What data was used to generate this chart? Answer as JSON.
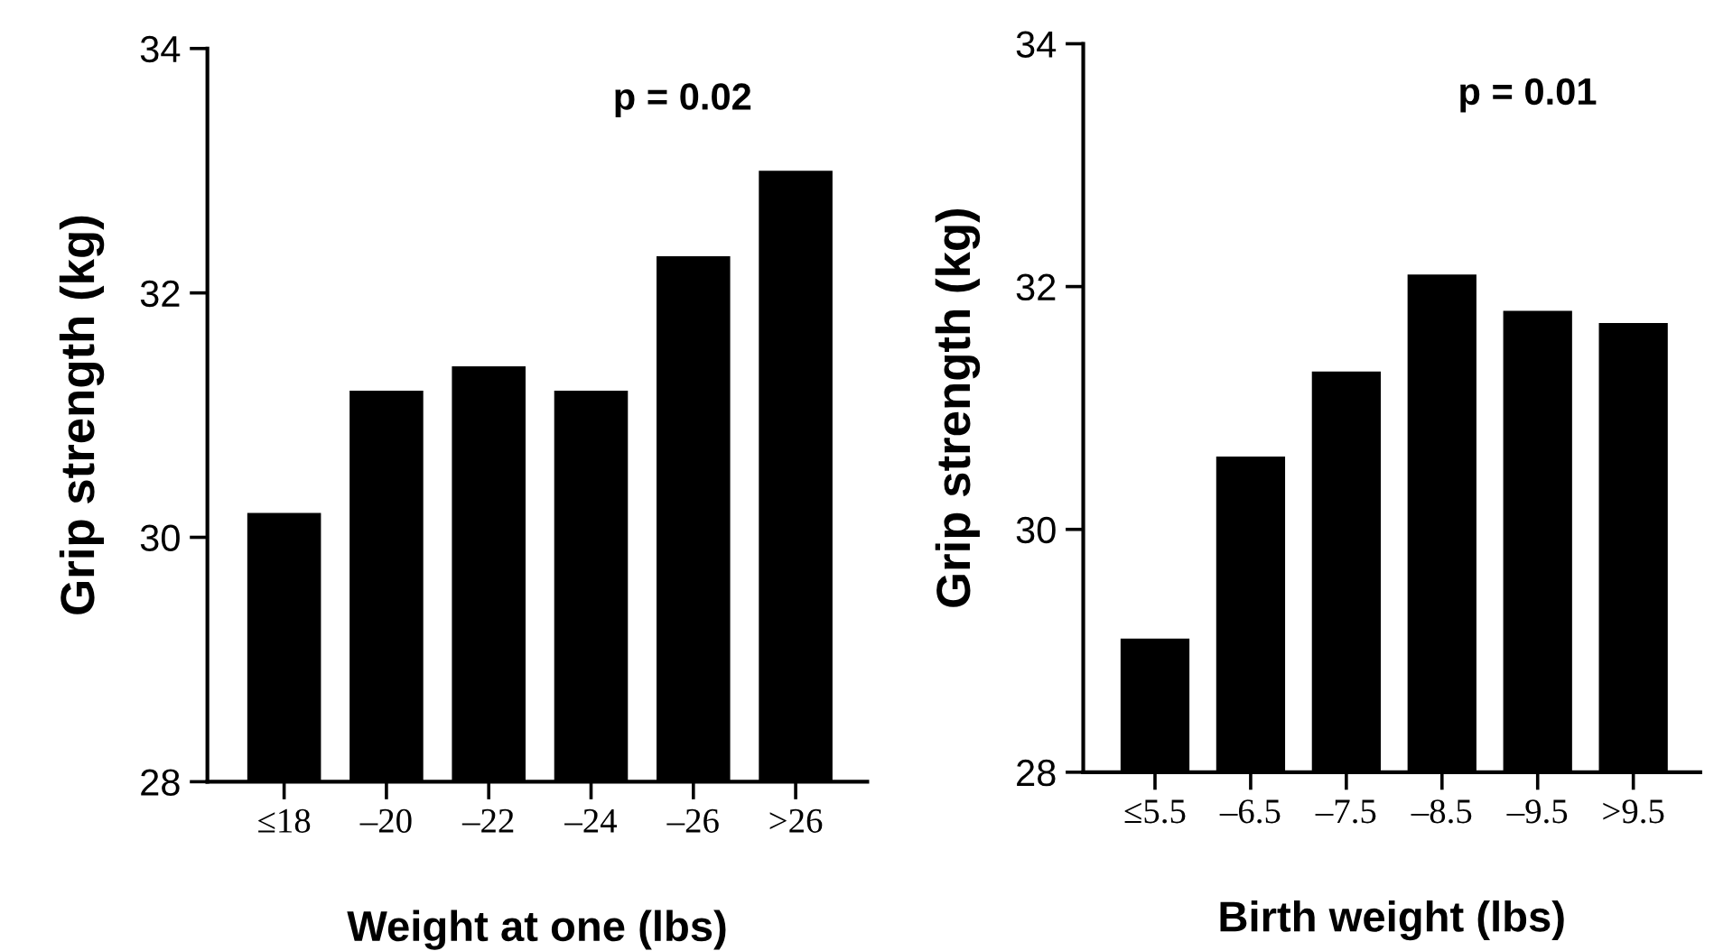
{
  "chart_data": [
    {
      "type": "bar",
      "xlabel": "Weight at one (lbs)",
      "ylabel": "Grip strength (kg)",
      "categories": [
        "≤18",
        "–20",
        "–22",
        "–24",
        "–26",
        ">26"
      ],
      "values": [
        30.2,
        31.2,
        31.4,
        31.2,
        32.3,
        33.0
      ],
      "color": "#000000",
      "ylim": [
        28,
        34
      ],
      "yticks": [
        28,
        30,
        32,
        34
      ],
      "annotations": [
        "p = 0.02"
      ]
    },
    {
      "type": "bar",
      "xlabel": "Birth weight (lbs)",
      "ylabel": "Grip strength (kg)",
      "categories": [
        "≤5.5",
        "–6.5",
        "–7.5",
        "–8.5",
        "–9.5",
        ">9.5"
      ],
      "values": [
        29.1,
        30.6,
        31.3,
        32.1,
        31.8,
        31.7
      ],
      "color": "#000000",
      "ylim": [
        28,
        34
      ],
      "yticks": [
        28,
        30,
        32,
        34
      ],
      "annotations": [
        "p = 0.01"
      ]
    }
  ]
}
